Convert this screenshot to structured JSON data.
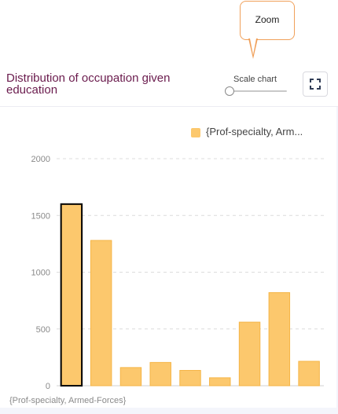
{
  "tooltip": {
    "label": "Zoom"
  },
  "header": {
    "title": "Distribution of occupation given education",
    "scale_label": "Scale chart",
    "scale_value": 0,
    "expand_icon": "expand-icon"
  },
  "colors": {
    "bar": "#fcc86d",
    "bar_border": "#f5b547",
    "selected_border": "#000000",
    "title": "#6a1b4d",
    "tooltip_border": "#f0a05a"
  },
  "chart_data": {
    "type": "bar",
    "title": "",
    "xlabel": "",
    "ylabel": "",
    "ylim": [
      0,
      2000
    ],
    "yticks": [
      0,
      500,
      1000,
      1500,
      2000
    ],
    "grid": true,
    "legend_position": "top-right",
    "categories": [
      "{Prof-specialty, Armed-Forces}",
      "",
      "",
      "",
      "",
      "",
      "",
      "",
      ""
    ],
    "x_tick_label": "{Prof-specialty, Armed-Forces}",
    "series": [
      {
        "name": "{Prof-specialty, Arm...",
        "values": [
          1600,
          1280,
          160,
          205,
          135,
          70,
          560,
          820,
          215
        ]
      }
    ],
    "selected_index": 0
  }
}
